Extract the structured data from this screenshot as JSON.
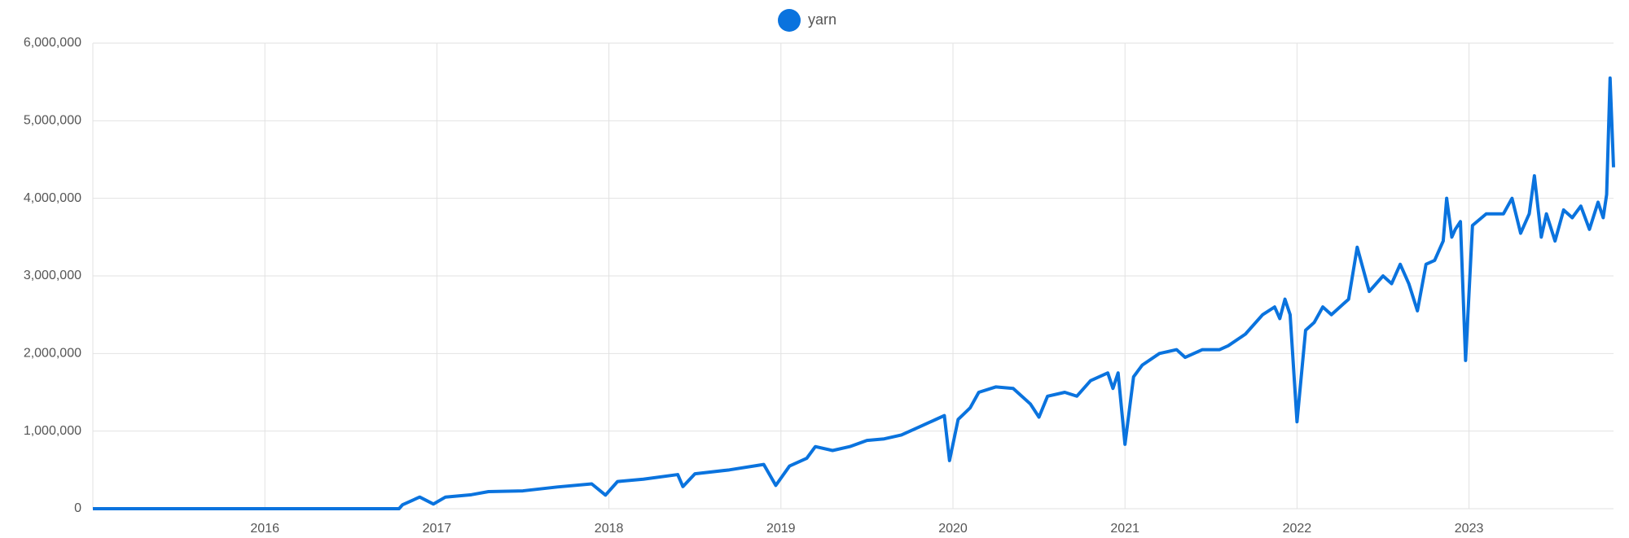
{
  "chart_data": {
    "type": "line",
    "x": [
      2015.0,
      2016.0,
      2016.78,
      2016.8,
      2016.9,
      2016.98,
      2017.05,
      2017.2,
      2017.3,
      2017.5,
      2017.7,
      2017.9,
      2017.98,
      2018.05,
      2018.2,
      2018.4,
      2018.43,
      2018.5,
      2018.7,
      2018.9,
      2018.97,
      2019.05,
      2019.15,
      2019.2,
      2019.3,
      2019.4,
      2019.5,
      2019.6,
      2019.7,
      2019.8,
      2019.9,
      2019.95,
      2019.98,
      2020.03,
      2020.1,
      2020.15,
      2020.25,
      2020.35,
      2020.45,
      2020.5,
      2020.55,
      2020.65,
      2020.72,
      2020.8,
      2020.9,
      2020.93,
      2020.96,
      2021.0,
      2021.05,
      2021.1,
      2021.2,
      2021.3,
      2021.35,
      2021.45,
      2021.55,
      2021.6,
      2021.7,
      2021.8,
      2021.87,
      2021.9,
      2021.93,
      2021.96,
      2022.0,
      2022.05,
      2022.1,
      2022.15,
      2022.2,
      2022.3,
      2022.35,
      2022.42,
      2022.5,
      2022.55,
      2022.6,
      2022.65,
      2022.7,
      2022.75,
      2022.8,
      2022.85,
      2022.87,
      2022.9,
      2022.92,
      2022.95,
      2022.98,
      2023.02,
      2023.1,
      2023.2,
      2023.25,
      2023.3,
      2023.35,
      2023.38,
      2023.42,
      2023.45,
      2023.5,
      2023.55,
      2023.6,
      2023.65,
      2023.7,
      2023.75,
      2023.78,
      2023.8,
      2023.82,
      2023.84
    ],
    "series": [
      {
        "name": "yarn",
        "color": "#0a73de",
        "values": [
          0,
          0,
          0,
          50000,
          150000,
          60000,
          150000,
          180000,
          220000,
          230000,
          280000,
          320000,
          175000,
          350000,
          380000,
          440000,
          285000,
          450000,
          500000,
          570000,
          300000,
          550000,
          650000,
          800000,
          750000,
          800000,
          880000,
          900000,
          950000,
          1050000,
          1150000,
          1200000,
          620000,
          1150000,
          1300000,
          1500000,
          1570000,
          1550000,
          1350000,
          1180000,
          1450000,
          1500000,
          1450000,
          1650000,
          1750000,
          1550000,
          1750000,
          830000,
          1700000,
          1850000,
          2000000,
          2050000,
          1950000,
          2050000,
          2050000,
          2100000,
          2250000,
          2500000,
          2600000,
          2450000,
          2700000,
          2500000,
          1120000,
          2300000,
          2400000,
          2600000,
          2500000,
          2700000,
          3370000,
          2800000,
          3000000,
          2900000,
          3150000,
          2900000,
          2550000,
          3150000,
          3200000,
          3450000,
          4000000,
          3500000,
          3600000,
          3700000,
          1910000,
          3650000,
          3800000,
          3800000,
          4000000,
          3550000,
          3800000,
          4290000,
          3500000,
          3800000,
          3450000,
          3850000,
          3750000,
          3900000,
          3600000,
          3950000,
          3750000,
          4050000,
          5550000,
          4400000
        ]
      }
    ],
    "xlim": [
      2015.0,
      2023.84
    ],
    "xticks": [
      2016,
      2017,
      2018,
      2019,
      2020,
      2021,
      2022,
      2023
    ],
    "ylim": [
      0,
      6000000
    ],
    "yticks": [
      0,
      {
        "value": 1000000,
        "label": "1,000,000"
      },
      {
        "value": 2000000,
        "label": "2,000,000"
      },
      {
        "value": 3000000,
        "label": "3,000,000"
      },
      {
        "value": 4000000,
        "label": "4,000,000"
      },
      {
        "value": 5000000,
        "label": "5,000,000"
      },
      {
        "value": 6000000,
        "label": "6,000,000"
      }
    ],
    "grid": true,
    "legend": "top"
  }
}
